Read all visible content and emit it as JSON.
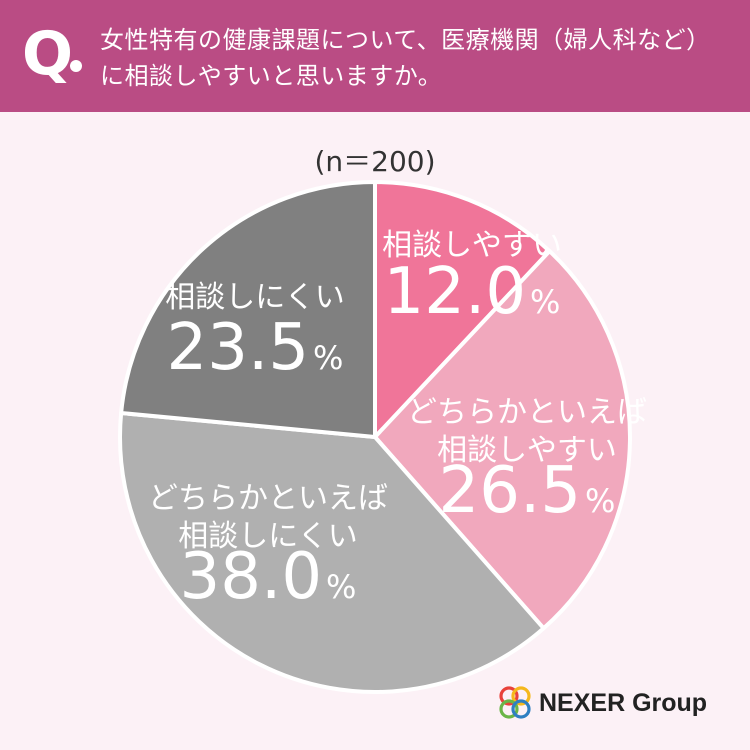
{
  "header": {
    "q_mark": "Q",
    "question_line1": "女性特有の健康課題について、医療機関（婦人科など）",
    "question_line2": "に相談しやすいと思いますか。"
  },
  "n_label": "(n＝200)",
  "chart_data": {
    "type": "pie",
    "start": "12 o'clock, clockwise",
    "slices": [
      {
        "label_lines": [
          "相談しやすい"
        ],
        "value": 12.0,
        "value_text": "12.0",
        "color": "#f07599",
        "text_color": "#ffffff"
      },
      {
        "label_lines": [
          "どちらかといえば",
          "相談しやすい"
        ],
        "value": 26.5,
        "value_text": "26.5",
        "color": "#f1a8bd",
        "text_color": "#ffffff"
      },
      {
        "label_lines": [
          "どちらかといえば",
          "相談しにくい"
        ],
        "value": 38.0,
        "value_text": "38.0",
        "color": "#b0b0b0",
        "text_color": "#ffffff"
      },
      {
        "label_lines": [
          "相談しにくい"
        ],
        "value": 23.5,
        "value_text": "23.5",
        "color": "#808080",
        "text_color": "#ffffff"
      }
    ],
    "unit": "%"
  },
  "logo": {
    "text": "NEXER Group",
    "colors": [
      "#e8423a",
      "#f5b81c",
      "#6ab547",
      "#2f7fc1"
    ]
  }
}
